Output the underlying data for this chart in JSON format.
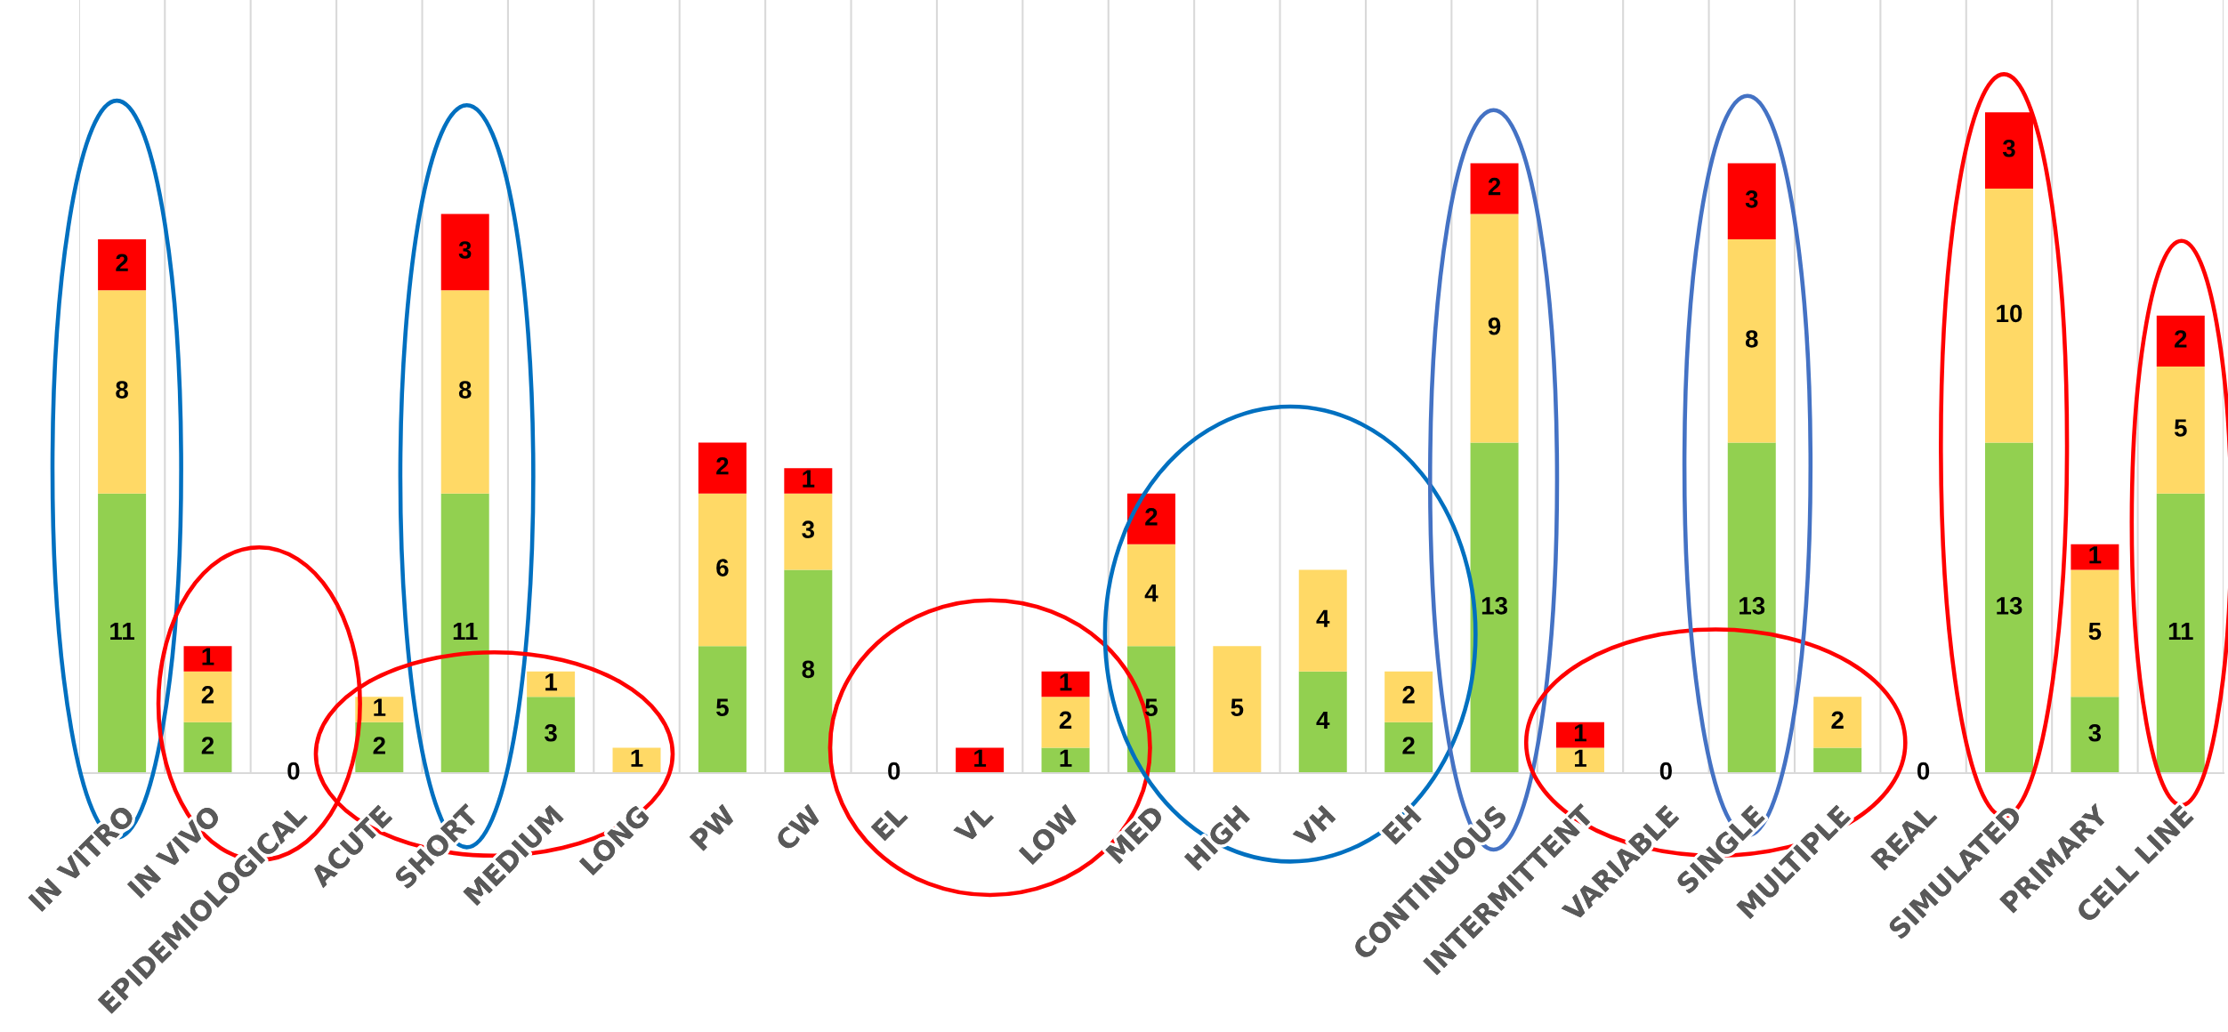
{
  "chart_data": {
    "type": "bar",
    "stacked": true,
    "grid": "x",
    "tick_labels": "x",
    "categories": [
      "IN VITRO",
      "IN VIVO",
      "EPIDEMIOLOGICAL",
      "ACUTE",
      "SHORT",
      "MEDIUM",
      "LONG",
      "PW",
      "CW",
      "EL",
      "VL",
      "LOW",
      "MED",
      "HIGH",
      "VH",
      "EH",
      "CONTINUOUS",
      "INTERMITTENT",
      "VARIABLE",
      "SINGLE",
      "MULTIPLE",
      "REAL",
      "SIMULATED",
      "PRIMARY",
      "CELL LINE"
    ],
    "series": [
      {
        "color": "#92d050",
        "values": [
          11,
          2,
          0,
          2,
          11,
          3,
          0,
          5,
          8,
          0,
          0,
          1,
          5,
          0,
          4,
          2,
          13,
          0,
          0,
          13,
          1,
          0,
          13,
          3,
          11
        ],
        "value_labels": [
          "11",
          "2",
          "0",
          "2",
          "11",
          "3",
          null,
          "5",
          "8",
          "0",
          null,
          "1",
          "5",
          null,
          "4",
          "2",
          "13",
          null,
          "0",
          "13",
          null,
          "0",
          "13",
          "3",
          "11"
        ]
      },
      {
        "color": "#ffd966",
        "values": [
          8,
          2,
          0,
          1,
          8,
          1,
          1,
          6,
          3,
          0,
          0,
          2,
          4,
          5,
          4,
          2,
          9,
          1,
          0,
          8,
          2,
          0,
          10,
          5,
          5
        ],
        "value_labels": [
          "8",
          "2",
          null,
          "1",
          "8",
          "1",
          "1",
          "6",
          "3",
          null,
          null,
          "2",
          "4",
          "5",
          "4",
          "2",
          "9",
          "1",
          null,
          "8",
          "2",
          null,
          "10",
          "5",
          "5"
        ]
      },
      {
        "color": "#ff0000",
        "values": [
          2,
          1,
          0,
          0,
          3,
          0,
          0,
          2,
          1,
          0,
          1,
          1,
          2,
          0,
          0,
          0,
          2,
          1,
          0,
          3,
          0,
          0,
          3,
          1,
          2
        ],
        "value_labels": [
          "2",
          "1",
          null,
          null,
          "3",
          null,
          null,
          "2",
          "1",
          null,
          "1",
          "1",
          "2",
          null,
          null,
          null,
          "2",
          "1",
          null,
          "3",
          null,
          null,
          "3",
          "1",
          "2"
        ]
      }
    ]
  }
}
